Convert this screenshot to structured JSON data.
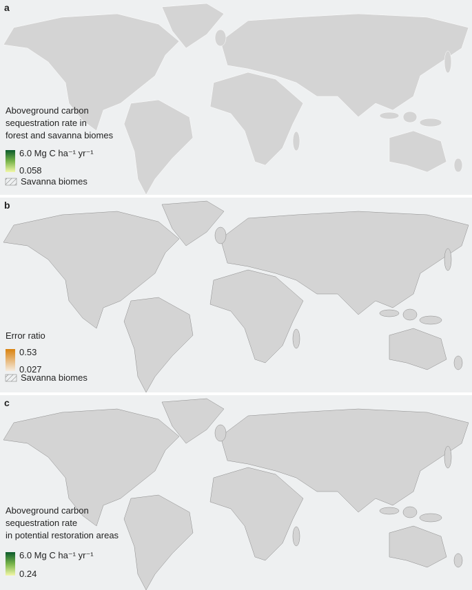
{
  "panels": [
    {
      "label": "a",
      "legend": {
        "title_lines": [
          "Aboveground carbon",
          "sequestration rate in",
          "forest and savanna biomes"
        ],
        "max": "6.0 Mg C ha⁻¹  yr⁻¹",
        "min": "0.058",
        "hatch": "Savanna biomes"
      }
    },
    {
      "label": "b",
      "legend": {
        "title_lines": [
          "Error ratio"
        ],
        "max": "0.53",
        "min": "0.027",
        "hatch": "Savanna biomes"
      }
    },
    {
      "label": "c",
      "legend": {
        "title_lines": [
          "Aboveground carbon",
          "sequestration rate",
          "in potential restoration areas"
        ],
        "max": "6.0 Mg C ha⁻¹  yr⁻¹",
        "min": "0.24"
      }
    }
  ]
}
